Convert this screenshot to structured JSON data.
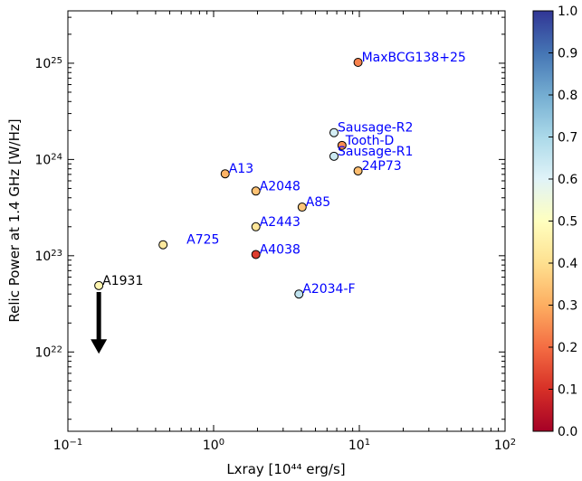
{
  "chart_data": {
    "type": "scatter",
    "xlabel": "Lxray [10⁴⁴ erg/s]",
    "ylabel": "Relic Power at 1.4 GHz [W/Hz]",
    "x_scale": "log",
    "y_scale": "log",
    "xlim": [
      0.1,
      100
    ],
    "ylim": [
      1.5e+21,
      3.5e+25
    ],
    "x_ticks": [
      {
        "value": 0.1,
        "mantissa": "10",
        "exp": "−1"
      },
      {
        "value": 1,
        "mantissa": "10",
        "exp": "0"
      },
      {
        "value": 10,
        "mantissa": "10",
        "exp": "1"
      },
      {
        "value": 100,
        "mantissa": "10",
        "exp": "2"
      }
    ],
    "y_ticks": [
      {
        "value": 1e+22,
        "mantissa": "10",
        "exp": "22"
      },
      {
        "value": 1e+23,
        "mantissa": "10",
        "exp": "23"
      },
      {
        "value": 1e+24,
        "mantissa": "10",
        "exp": "24"
      },
      {
        "value": 1e+25,
        "mantissa": "10",
        "exp": "25"
      }
    ],
    "grid": false,
    "colormap": "RdYlBu",
    "colorbar": {
      "range": [
        0.0,
        1.0
      ],
      "tick_labels": [
        "0.0",
        "0.1",
        "0.2",
        "0.3",
        "0.4",
        "0.5",
        "0.6",
        "0.7",
        "0.8",
        "0.9",
        "1.0"
      ]
    },
    "points": [
      {
        "name": "MaxBCG138+25",
        "x": 9.8,
        "y": 1.02e+25,
        "c": 0.23,
        "label_color": "#0000ff",
        "label_side": "right"
      },
      {
        "name": "Sausage-R2",
        "x": 6.7,
        "y": 1.9e+24,
        "c": 0.62,
        "label_color": "#0000ff",
        "label_side": "right"
      },
      {
        "name": "Tooth-D",
        "x": 7.6,
        "y": 1.4e+24,
        "c": 0.25,
        "label_color": "#0000ff",
        "label_side": "right"
      },
      {
        "name": "Sausage-R1",
        "x": 6.7,
        "y": 1.08e+24,
        "c": 0.64,
        "label_color": "#0000ff",
        "label_side": "right"
      },
      {
        "name": "24P73",
        "x": 9.8,
        "y": 7.6e+23,
        "c": 0.33,
        "label_color": "#0000ff",
        "label_side": "right"
      },
      {
        "name": "A13",
        "x": 1.2,
        "y": 7.1e+23,
        "c": 0.31,
        "label_color": "#0000ff",
        "label_side": "right"
      },
      {
        "name": "A2048",
        "x": 1.95,
        "y": 4.7e+23,
        "c": 0.34,
        "label_color": "#0000ff",
        "label_side": "right"
      },
      {
        "name": "A85",
        "x": 4.05,
        "y": 3.2e+23,
        "c": 0.35,
        "label_color": "#0000ff",
        "label_side": "right"
      },
      {
        "name": "A2443",
        "x": 1.95,
        "y": 2e+23,
        "c": 0.42,
        "label_color": "#0000ff",
        "label_side": "right"
      },
      {
        "name": "A725",
        "x": 0.45,
        "y": 1.3e+23,
        "c": 0.43,
        "label_color": "#0000ff",
        "label_side": "right-far"
      },
      {
        "name": "A4038",
        "x": 1.95,
        "y": 1.03e+23,
        "c": 0.12,
        "label_color": "#0000ff",
        "label_side": "right"
      },
      {
        "name": "A1931",
        "x": 0.163,
        "y": 4.9e+22,
        "c": 0.47,
        "label_color": "#000000",
        "label_side": "right",
        "upper_limit": true
      },
      {
        "name": "A2034-F",
        "x": 3.85,
        "y": 4e+22,
        "c": 0.66,
        "label_color": "#0000ff",
        "label_side": "right"
      }
    ],
    "upper_limit_arrow": {
      "x": 0.163,
      "y_from": 4.2e+22,
      "y_to": 1e+22
    }
  }
}
